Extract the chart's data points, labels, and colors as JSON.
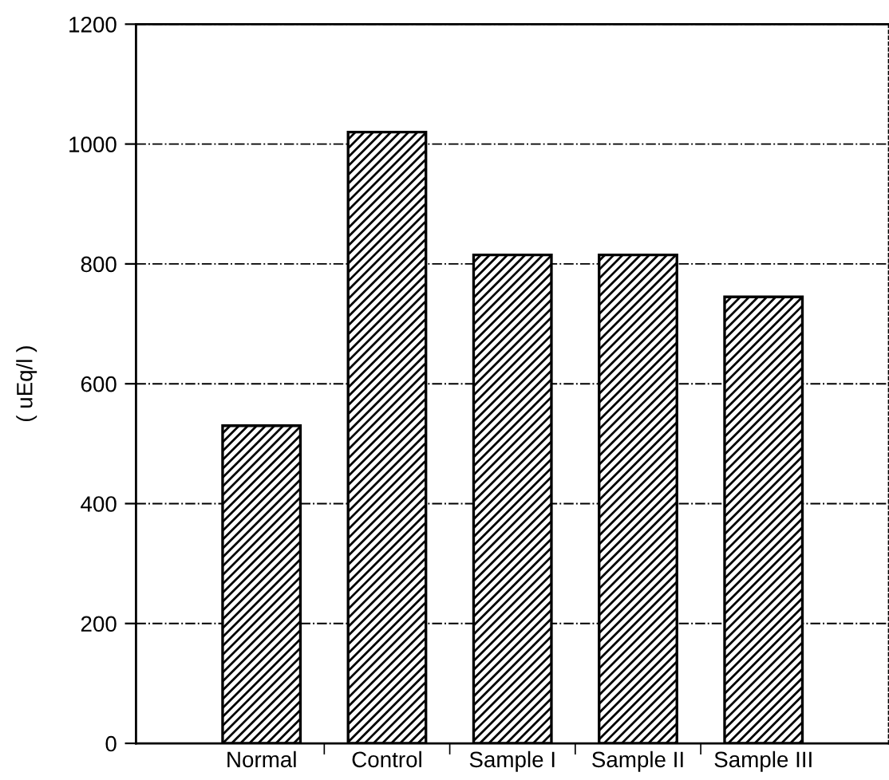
{
  "chart_data": {
    "type": "bar",
    "ylabel": "( uEq/l )",
    "categories": [
      "Normal",
      "Control",
      "Sample I",
      "Sample II",
      "Sample III"
    ],
    "values": [
      530,
      1020,
      815,
      815,
      745
    ],
    "color": "#000000",
    "ylim": [
      0,
      1200
    ],
    "yticks": [
      0,
      200,
      400,
      600,
      800,
      1000,
      1200
    ],
    "grid": "y"
  }
}
